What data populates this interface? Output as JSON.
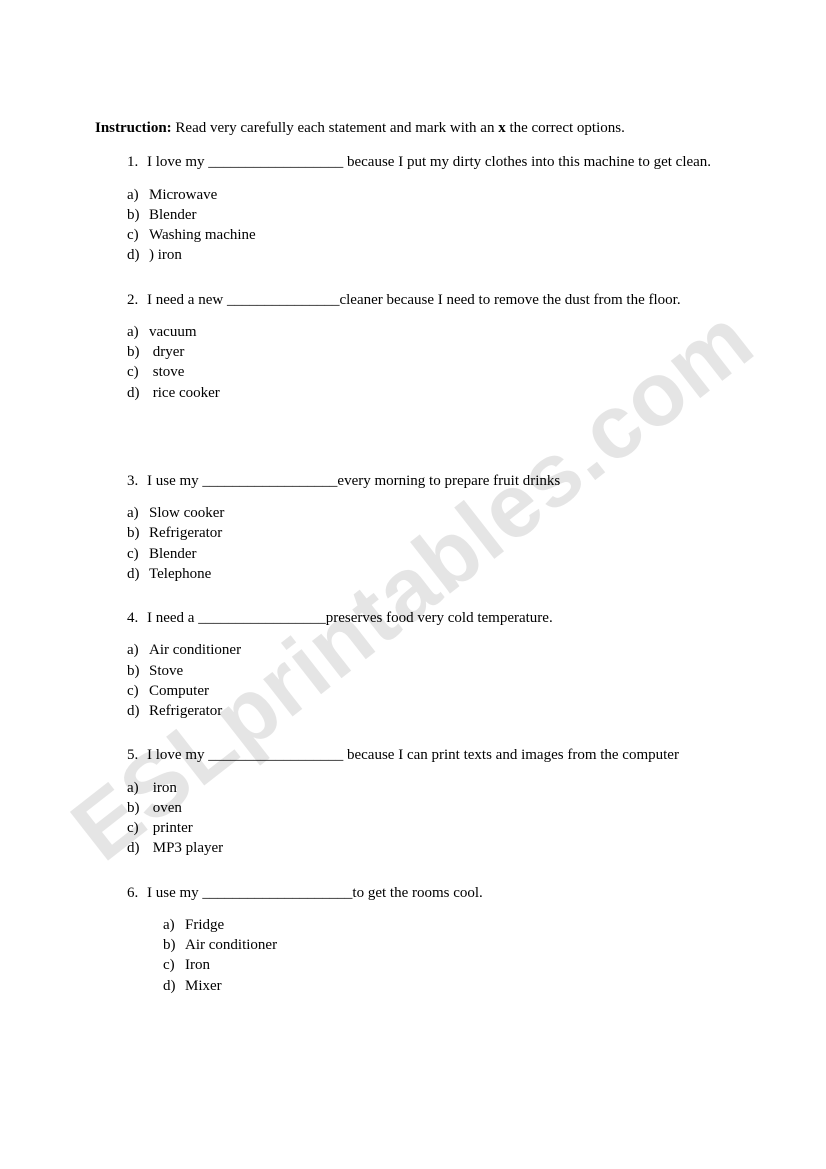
{
  "instruction_label": "Instruction:",
  "instruction_text_1": " Read very carefully each statement and mark with an ",
  "instruction_bold_x": "x",
  "instruction_text_2": " the correct options.",
  "watermark": "ESLprintables.com",
  "questions": [
    {
      "num": "1.",
      "text": "I love my __________________ because I put my dirty clothes into this machine to get clean.",
      "opts": [
        {
          "l": "a)",
          "t": "Microwave"
        },
        {
          "l": "b)",
          "t": "Blender"
        },
        {
          "l": "c)",
          "t": "Washing machine"
        },
        {
          "l": "d)",
          "t": ") iron"
        }
      ]
    },
    {
      "num": "2.",
      "text": "I need a new _______________cleaner because I need to remove the dust from the floor.",
      "opts": [
        {
          "l": "a)",
          "t": "vacuum"
        },
        {
          "l": "b)",
          "t": " dryer"
        },
        {
          "l": "c)",
          "t": " stove"
        },
        {
          "l": "d)",
          "t": " rice cooker"
        }
      ]
    },
    {
      "num": "3.",
      "text": "I use my __________________every morning to prepare fruit drinks",
      "opts": [
        {
          "l": "a)",
          "t": "Slow cooker"
        },
        {
          "l": "b)",
          "t": "Refrigerator"
        },
        {
          "l": "c)",
          "t": "Blender"
        },
        {
          "l": "d)",
          "t": "Telephone"
        }
      ]
    },
    {
      "num": "4.",
      "text": "I need a _________________preserves food very cold temperature.",
      "opts": [
        {
          "l": "a)",
          "t": "Air conditioner"
        },
        {
          "l": "b)",
          "t": "Stove"
        },
        {
          "l": "c)",
          "t": "Computer"
        },
        {
          "l": "d)",
          "t": "Refrigerator"
        }
      ]
    },
    {
      "num": "5.",
      "text": "I love my __________________ because I can print texts and images from the computer",
      "opts": [
        {
          "l": "a)",
          "t": " iron"
        },
        {
          "l": "b)",
          "t": " oven"
        },
        {
          "l": "c)",
          "t": " printer"
        },
        {
          "l": "d)",
          "t": " MP3 player"
        }
      ]
    },
    {
      "num": "6.",
      "text": "I use my ____________________to get the rooms cool.",
      "opts": [
        {
          "l": "a)",
          "t": "Fridge"
        },
        {
          "l": "b)",
          "t": "Air conditioner"
        },
        {
          "l": "c)",
          "t": "Iron"
        },
        {
          "l": "d)",
          "t": "Mixer"
        }
      ]
    }
  ]
}
